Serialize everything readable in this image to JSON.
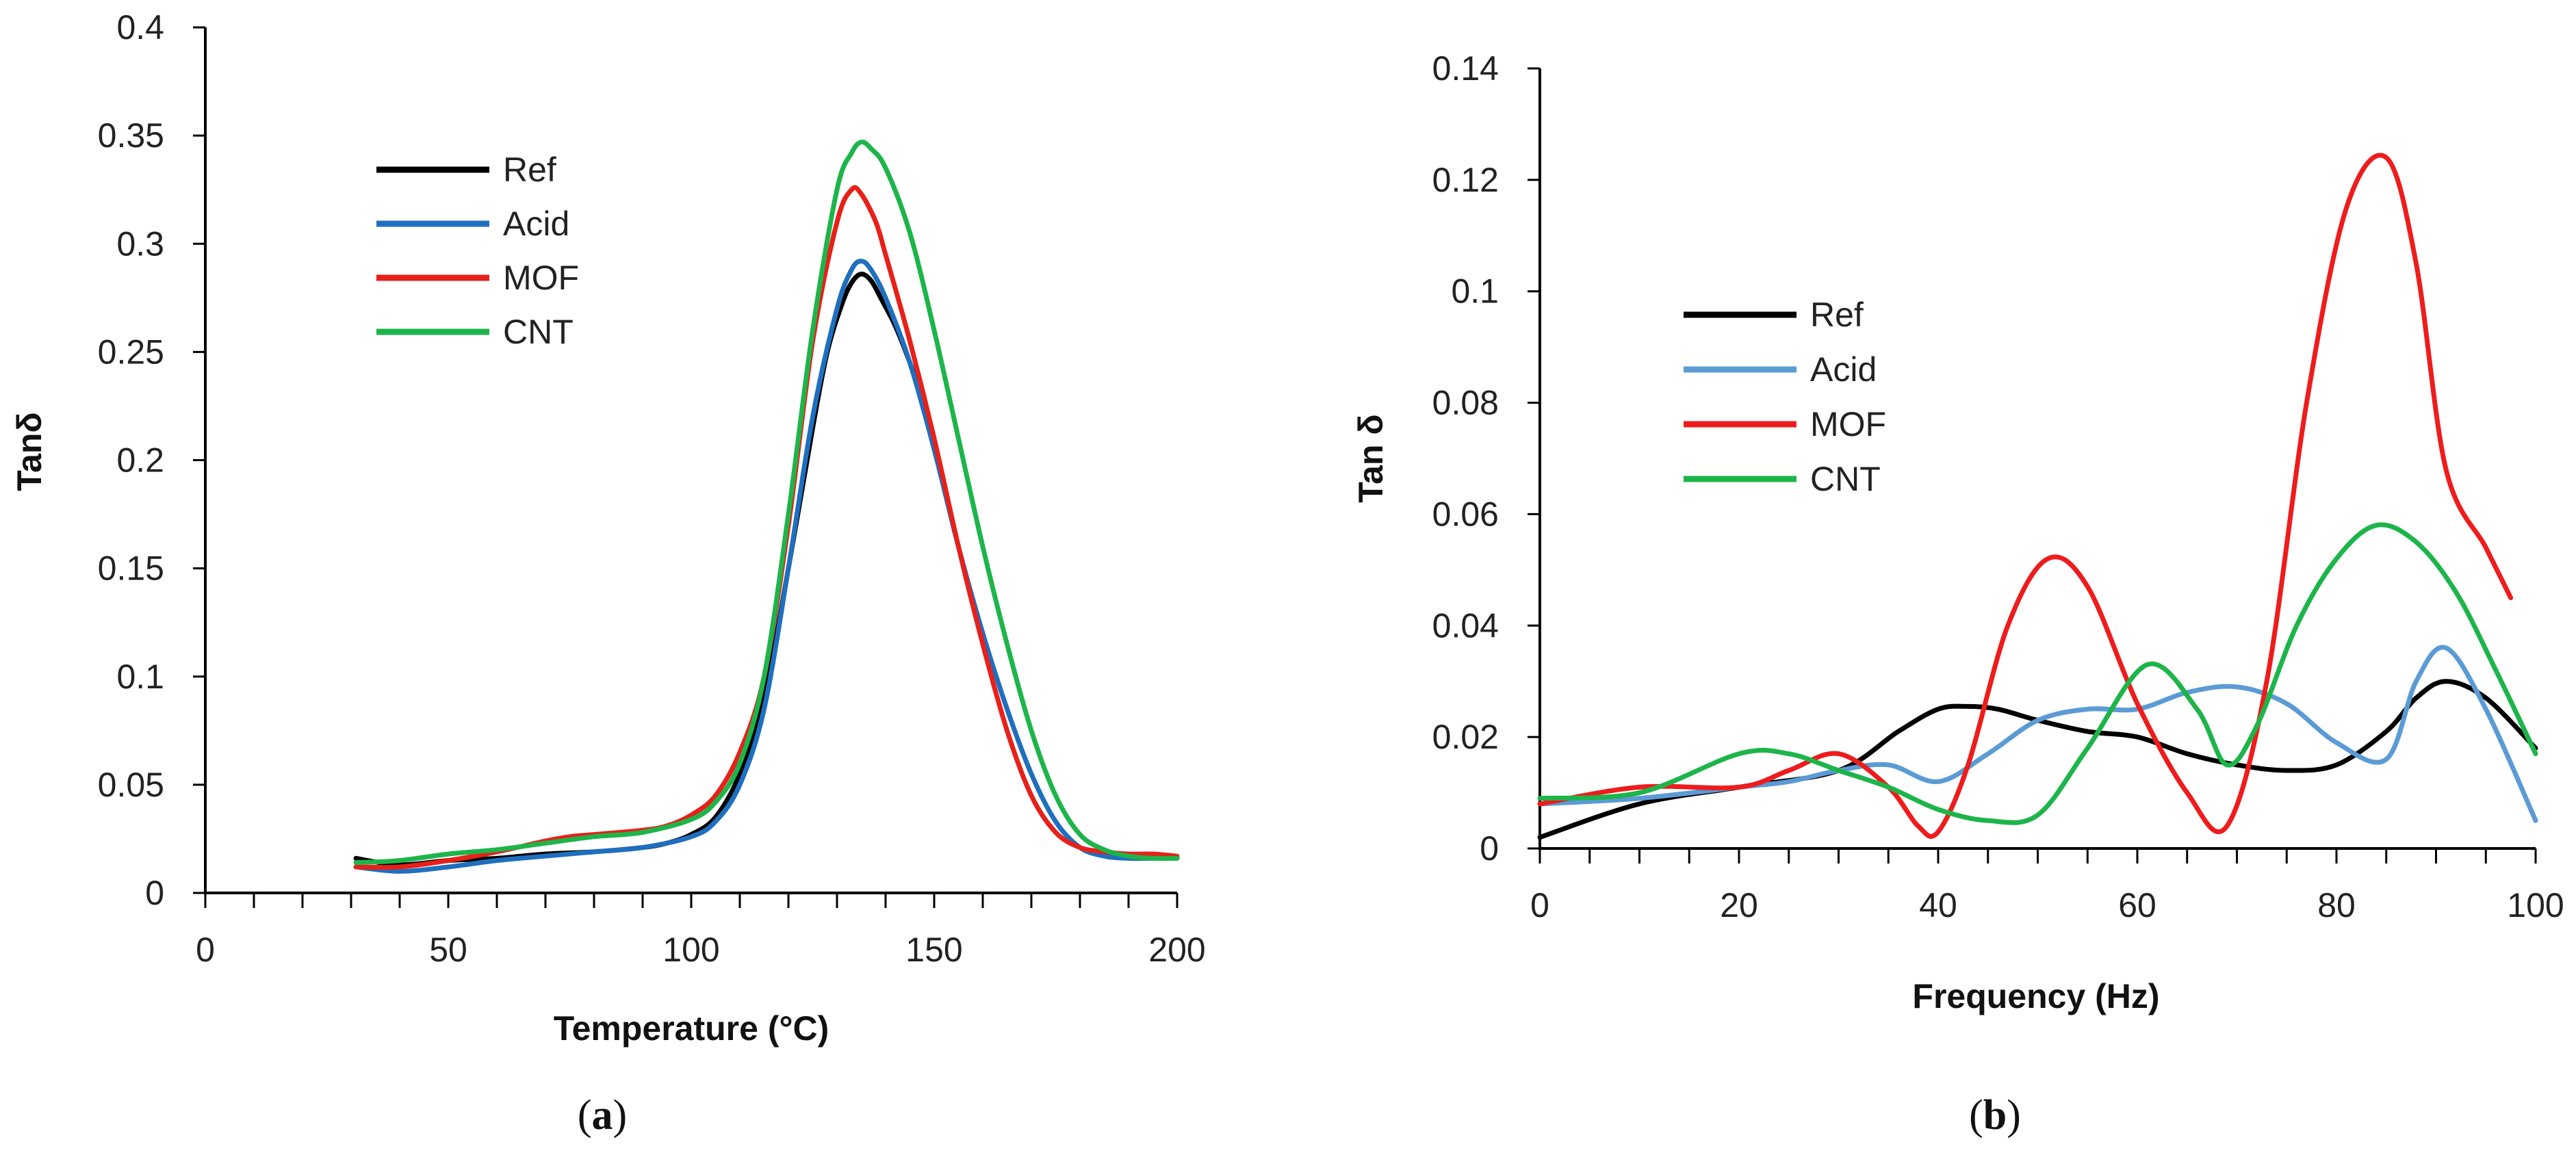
{
  "chart_data": [
    {
      "type": "line",
      "panel": "a",
      "caption_letter": "a",
      "xlabel": "Temperature (°C)",
      "ylabel": "Tanδ",
      "xlim": [
        0,
        200
      ],
      "ylim": [
        0,
        0.4
      ],
      "xticks": [
        0,
        50,
        100,
        150,
        200
      ],
      "xtick_labels": [
        "0",
        "50",
        "100",
        "150",
        "200"
      ],
      "yticks": [
        0,
        0.05,
        0.1,
        0.15,
        0.2,
        0.25,
        0.3,
        0.35,
        0.4
      ],
      "ytick_labels": [
        "0",
        "0.05",
        "0.1",
        "0.15",
        "0.2",
        "0.25",
        "0.3",
        "0.35",
        "0.4"
      ],
      "x_minor_step": 10,
      "legend_position": "upper-left",
      "series": [
        {
          "name": "Ref",
          "color": "#000000",
          "x": [
            31,
            40,
            50,
            60,
            70,
            80,
            90,
            95,
            100,
            105,
            110,
            115,
            120,
            125,
            128,
            131,
            133,
            135,
            137,
            139,
            142,
            145,
            148,
            150
          ],
          "y": [
            0.016,
            0.013,
            0.015,
            0.016,
            0.018,
            0.019,
            0.021,
            0.023,
            0.027,
            0.035,
            0.055,
            0.09,
            0.15,
            0.215,
            0.25,
            0.272,
            0.282,
            0.286,
            0.283,
            0.275,
            0.262,
            0.245,
            0.225,
            0.205
          ]
        },
        {
          "name": "Acid",
          "color": "#1f6fbf",
          "x": [
            31,
            40,
            50,
            60,
            70,
            80,
            90,
            100,
            105,
            110,
            115,
            120,
            125,
            130,
            133,
            135,
            137,
            140,
            145,
            150,
            155,
            160,
            165,
            170,
            175,
            180,
            185,
            190,
            195,
            200
          ],
          "y": [
            0.012,
            0.01,
            0.012,
            0.015,
            0.017,
            0.019,
            0.021,
            0.026,
            0.033,
            0.05,
            0.085,
            0.15,
            0.22,
            0.27,
            0.288,
            0.292,
            0.288,
            0.275,
            0.245,
            0.205,
            0.16,
            0.12,
            0.085,
            0.055,
            0.033,
            0.021,
            0.017,
            0.016,
            0.016,
            0.016
          ]
        },
        {
          "name": "MOF",
          "color": "#e8201a",
          "x": [
            31,
            40,
            50,
            60,
            70,
            75,
            80,
            90,
            95,
            100,
            105,
            110,
            115,
            120,
            125,
            130,
            133,
            135,
            138,
            140,
            145,
            150,
            155,
            160,
            165,
            170,
            175,
            180,
            185,
            190,
            195,
            200
          ],
          "y": [
            0.012,
            0.012,
            0.015,
            0.019,
            0.024,
            0.026,
            0.027,
            0.029,
            0.031,
            0.036,
            0.045,
            0.065,
            0.1,
            0.17,
            0.255,
            0.31,
            0.325,
            0.323,
            0.31,
            0.295,
            0.255,
            0.21,
            0.16,
            0.115,
            0.075,
            0.045,
            0.028,
            0.021,
            0.019,
            0.018,
            0.018,
            0.017
          ]
        },
        {
          "name": "CNT",
          "color": "#1db54a",
          "x": [
            31,
            40,
            50,
            60,
            70,
            80,
            90,
            100,
            105,
            110,
            115,
            120,
            125,
            130,
            133,
            135,
            137,
            140,
            145,
            150,
            155,
            160,
            165,
            170,
            175,
            180,
            185,
            190,
            195,
            200
          ],
          "y": [
            0.014,
            0.015,
            0.018,
            0.02,
            0.023,
            0.026,
            0.028,
            0.034,
            0.042,
            0.06,
            0.1,
            0.175,
            0.26,
            0.325,
            0.342,
            0.347,
            0.344,
            0.335,
            0.305,
            0.26,
            0.21,
            0.16,
            0.115,
            0.075,
            0.045,
            0.027,
            0.02,
            0.017,
            0.016,
            0.016
          ]
        }
      ]
    },
    {
      "type": "line",
      "panel": "b",
      "caption_letter": "b",
      "xlabel": "Frequency (Hz)",
      "ylabel": "Tan δ",
      "xlim": [
        0,
        100
      ],
      "ylim": [
        0,
        0.14
      ],
      "xticks": [
        0,
        20,
        40,
        60,
        80,
        100
      ],
      "xtick_labels": [
        "0",
        "20",
        "40",
        "60",
        "80",
        "100"
      ],
      "yticks": [
        0,
        0.02,
        0.04,
        0.06,
        0.08,
        0.1,
        0.12,
        0.14
      ],
      "ytick_labels": [
        "0",
        "0.02",
        "0.04",
        "0.06",
        "0.08",
        "0.1",
        "0.12",
        "0.14"
      ],
      "x_minor_step": 5,
      "legend_position": "upper-left",
      "series": [
        {
          "name": "Ref",
          "color": "#000000",
          "x": [
            0,
            10,
            20,
            30,
            36,
            40,
            43,
            46,
            50,
            55,
            60,
            65,
            70,
            75,
            80,
            85,
            88,
            91,
            95,
            100
          ],
          "y": [
            0.002,
            0.008,
            0.011,
            0.014,
            0.021,
            0.025,
            0.0255,
            0.025,
            0.023,
            0.021,
            0.02,
            0.017,
            0.015,
            0.014,
            0.015,
            0.021,
            0.027,
            0.03,
            0.027,
            0.018
          ]
        },
        {
          "name": "Acid",
          "color": "#5b9bd5",
          "x": [
            0,
            10,
            20,
            25,
            30,
            35,
            40,
            45,
            50,
            55,
            60,
            65,
            70,
            75,
            80,
            85,
            88,
            91,
            95,
            100
          ],
          "y": [
            0.008,
            0.009,
            0.011,
            0.012,
            0.014,
            0.015,
            0.012,
            0.017,
            0.023,
            0.025,
            0.025,
            0.028,
            0.029,
            0.026,
            0.019,
            0.016,
            0.03,
            0.036,
            0.025,
            0.005
          ]
        },
        {
          "name": "MOF",
          "color": "#ee1c1c",
          "x": [
            0,
            10,
            20,
            25,
            30,
            35,
            38,
            40,
            43,
            47,
            51,
            55,
            60,
            65,
            69,
            73,
            77,
            81,
            85,
            88,
            91,
            95,
            97.5
          ],
          "y": [
            0.008,
            0.011,
            0.011,
            0.014,
            0.017,
            0.011,
            0.004,
            0.003,
            0.015,
            0.04,
            0.052,
            0.047,
            0.026,
            0.01,
            0.004,
            0.03,
            0.08,
            0.115,
            0.124,
            0.105,
            0.068,
            0.054,
            0.045
          ]
        },
        {
          "name": "CNT",
          "color": "#1db54a",
          "x": [
            0,
            10,
            20,
            25,
            30,
            35,
            40,
            45,
            50,
            55,
            61,
            66,
            69,
            72,
            76,
            80,
            84,
            88,
            92,
            96,
            100
          ],
          "y": [
            0.009,
            0.01,
            0.017,
            0.017,
            0.014,
            0.011,
            0.007,
            0.005,
            0.006,
            0.018,
            0.033,
            0.025,
            0.015,
            0.022,
            0.04,
            0.052,
            0.058,
            0.055,
            0.046,
            0.032,
            0.017
          ]
        }
      ]
    }
  ]
}
